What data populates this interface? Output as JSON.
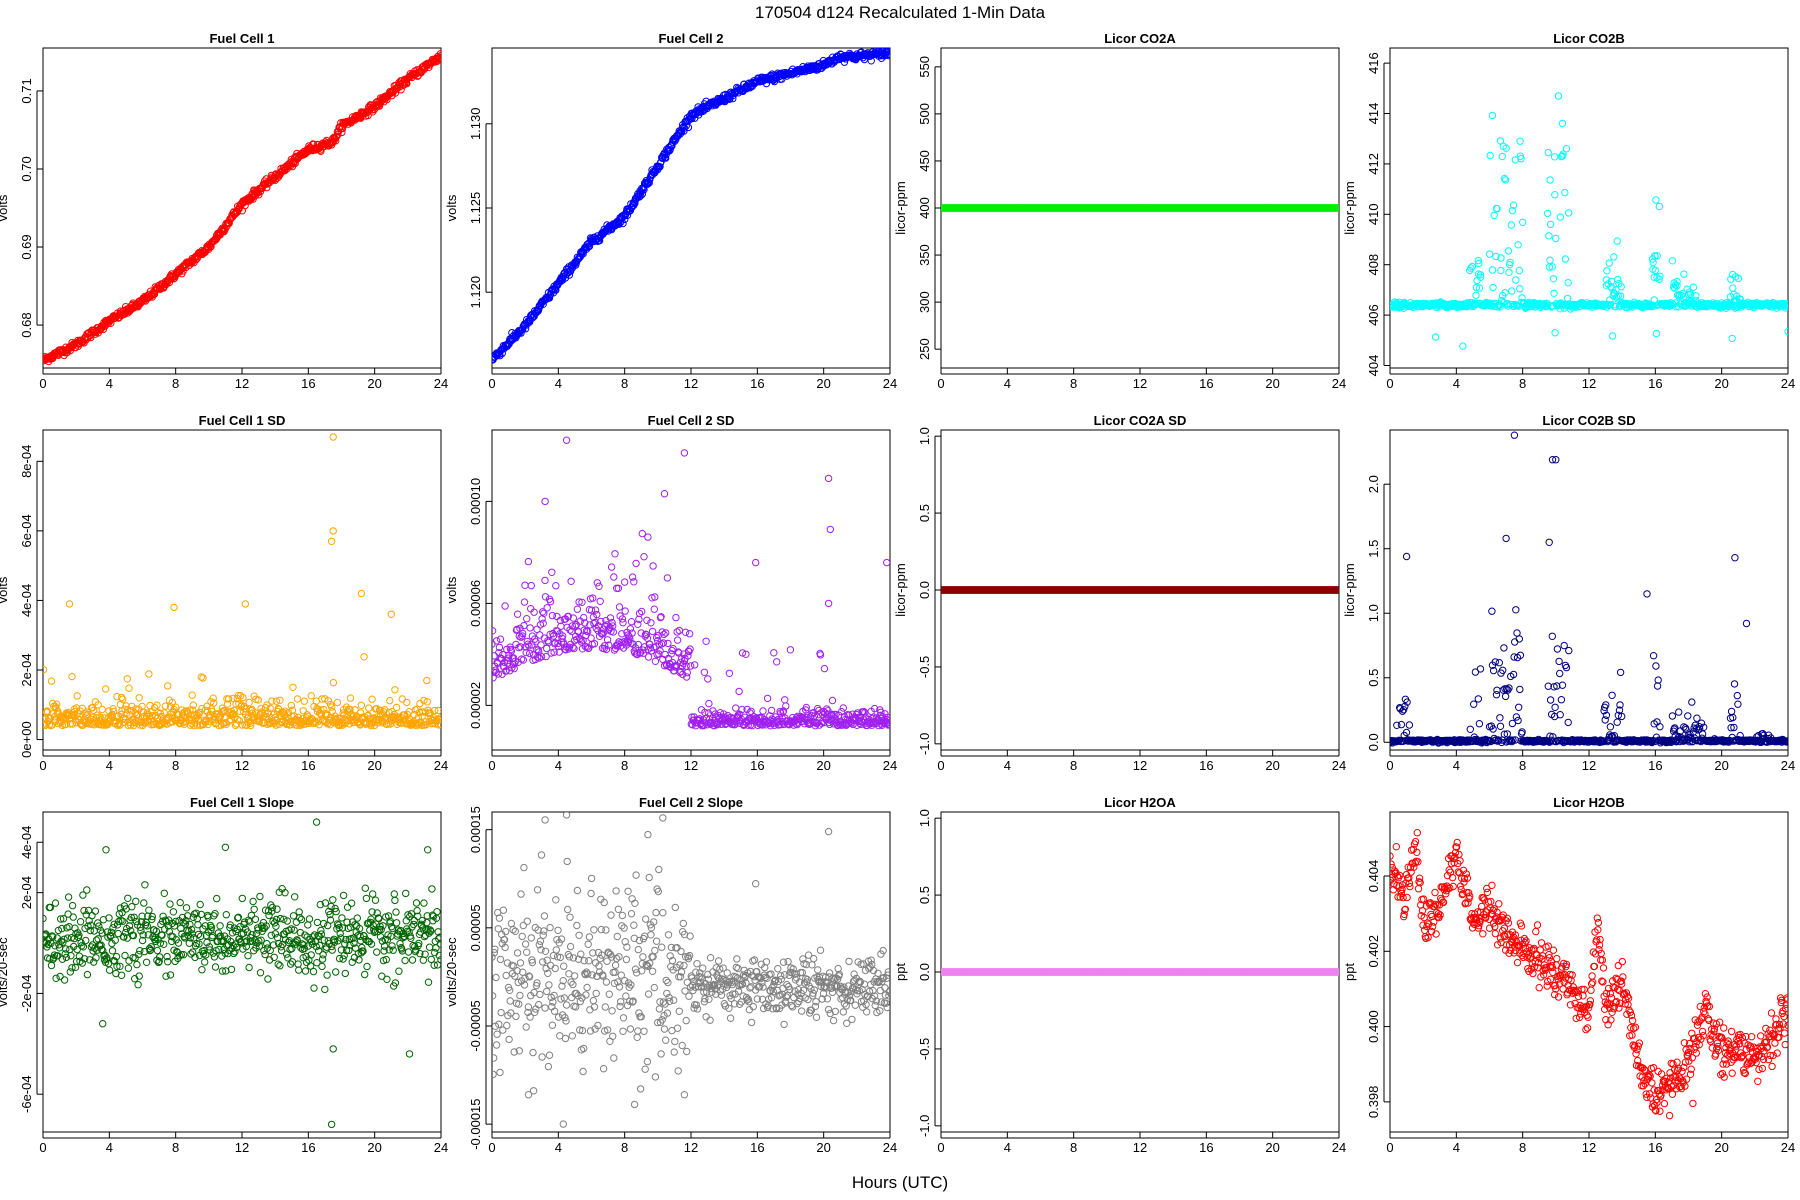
{
  "figure": {
    "title": "170504   d124   Recalculated 1-Min Data",
    "xlabel": "Hours (UTC)"
  },
  "chart_data": [
    {
      "type": "scatter",
      "id": "fc1",
      "title": "Fuel Cell 1",
      "ylabel": "volts",
      "color": "#ff0000",
      "xlim": [
        0,
        24
      ],
      "ylim": [
        0.6745,
        0.7155
      ],
      "xticks": [
        "0",
        "4",
        "8",
        "12",
        "16",
        "20",
        "24"
      ],
      "yticks": [
        {
          "v": 0.68,
          "label": "0.68"
        },
        {
          "v": 0.69,
          "label": "0.69"
        },
        {
          "v": 0.7,
          "label": "0.70"
        },
        {
          "v": 0.71,
          "label": "0.71"
        }
      ],
      "gen": {
        "kind": "trend",
        "x": [
          0,
          2,
          4,
          6,
          8,
          10,
          12,
          14,
          16,
          17.5,
          18,
          20,
          22,
          24
        ],
        "y": [
          0.6755,
          0.6775,
          0.6805,
          0.683,
          0.6865,
          0.69,
          0.6955,
          0.699,
          0.7025,
          0.7035,
          0.7055,
          0.708,
          0.7115,
          0.7145
        ],
        "noise": 0.00025
      }
    },
    {
      "type": "scatter",
      "id": "fc2",
      "title": "Fuel Cell 2",
      "ylabel": "volts",
      "color": "#0000ff",
      "xlim": [
        0,
        24
      ],
      "ylim": [
        1.1155,
        1.1345
      ],
      "xticks": [
        "0",
        "4",
        "8",
        "12",
        "16",
        "20",
        "24"
      ],
      "yticks": [
        {
          "v": 1.12,
          "label": "1.120"
        },
        {
          "v": 1.125,
          "label": "1.125"
        },
        {
          "v": 1.13,
          "label": "1.130"
        }
      ],
      "gen": {
        "kind": "trend",
        "x": [
          0,
          2,
          4,
          6,
          8,
          10,
          11,
          12,
          14,
          16,
          18,
          20,
          21,
          22,
          24
        ],
        "y": [
          1.116,
          1.118,
          1.1205,
          1.123,
          1.1245,
          1.1275,
          1.129,
          1.1305,
          1.1315,
          1.1325,
          1.133,
          1.1335,
          1.134,
          1.134,
          1.1342
        ],
        "noise": 0.00012
      }
    },
    {
      "type": "scatter",
      "id": "co2a",
      "title": "Licor CO2A",
      "ylabel": "licor-ppm",
      "color": "#00ee00",
      "xlim": [
        0,
        24
      ],
      "ylim": [
        230,
        570
      ],
      "xticks": [
        "0",
        "4",
        "8",
        "12",
        "16",
        "20",
        "24"
      ],
      "yticks": [
        {
          "v": 250,
          "label": "250"
        },
        {
          "v": 300,
          "label": "300"
        },
        {
          "v": 350,
          "label": "350"
        },
        {
          "v": 400,
          "label": "400"
        },
        {
          "v": 450,
          "label": "450"
        },
        {
          "v": 500,
          "label": "500"
        },
        {
          "v": 550,
          "label": "550"
        }
      ],
      "gen": {
        "kind": "flat",
        "value": 400
      }
    },
    {
      "type": "scatter",
      "id": "co2b",
      "title": "Licor CO2B",
      "ylabel": "licor-ppm",
      "color": "#00ffff",
      "xlim": [
        0,
        24
      ],
      "ylim": [
        403.9,
        416.6
      ],
      "xticks": [
        "0",
        "4",
        "8",
        "12",
        "16",
        "20",
        "24"
      ],
      "yticks": [
        {
          "v": 404,
          "label": "404"
        },
        {
          "v": 406,
          "label": "406"
        },
        {
          "v": 408,
          "label": "408"
        },
        {
          "v": 410,
          "label": "410"
        },
        {
          "v": 412,
          "label": "412"
        },
        {
          "v": 414,
          "label": "414"
        },
        {
          "v": 416,
          "label": "416"
        }
      ],
      "gen": {
        "kind": "spiky",
        "base": 406.4,
        "noise": 0.05,
        "bursts": [
          [
            4.8,
            5.5,
            2.5
          ],
          [
            6,
            8,
            8
          ],
          [
            9.5,
            10.8,
            8
          ],
          [
            13,
            14,
            1.5
          ],
          [
            15.8,
            16.3,
            4
          ],
          [
            17,
            18.5,
            1.2
          ],
          [
            20.5,
            21.2,
            1.5
          ]
        ],
        "low": 404.6
      }
    },
    {
      "type": "scatter",
      "id": "fc1sd",
      "title": "Fuel Cell 1 SD",
      "ylabel": "volts",
      "color": "#ffa500",
      "xlim": [
        0,
        24
      ],
      "ylim": [
        -3e-05,
        0.00089
      ],
      "xticks": [
        "0",
        "4",
        "8",
        "12",
        "16",
        "20",
        "24"
      ],
      "yticks": [
        {
          "v": 0,
          "label": "0e+00"
        },
        {
          "v": 0.0002,
          "label": "2e-04"
        },
        {
          "v": 0.0004,
          "label": "4e-04"
        },
        {
          "v": 0.0006,
          "label": "6e-04"
        },
        {
          "v": 0.0008,
          "label": "8e-04"
        }
      ],
      "gen": {
        "kind": "noisepos",
        "base": 4e-05,
        "spread": 4e-05,
        "outliers": [
          [
            17.5,
            0.00087
          ],
          [
            17.5,
            0.0006
          ],
          [
            17.4,
            0.00057
          ],
          [
            1.6,
            0.00039
          ],
          [
            12.2,
            0.00039
          ],
          [
            19.2,
            0.00042
          ],
          [
            21,
            0.00036
          ],
          [
            7.9,
            0.00038
          ]
        ]
      }
    },
    {
      "type": "scatter",
      "id": "fc2sd",
      "title": "Fuel Cell 2 SD",
      "ylabel": "volts",
      "color": "#a020f0",
      "xlim": [
        0,
        24
      ],
      "ylim": [
        2.5e-06,
        0.000128
      ],
      "xticks": [
        "0",
        "4",
        "8",
        "12",
        "16",
        "20",
        "24"
      ],
      "yticks": [
        {
          "v": 2e-05,
          "label": "0.00002"
        },
        {
          "v": 6e-05,
          "label": "0.00006"
        },
        {
          "v": 0.0001,
          "label": "0.00010"
        }
      ],
      "gen": {
        "kind": "sdwave",
        "outliers": [
          [
            4.5,
            0.000124
          ],
          [
            11.6,
            0.000119
          ],
          [
            10.4,
            0.000103
          ],
          [
            3.2,
            0.0001
          ],
          [
            20.3,
            0.000109
          ],
          [
            20.4,
            8.9e-05
          ],
          [
            9.4,
            8.6e-05
          ],
          [
            15.9,
            7.6e-05
          ],
          [
            23.8,
            7.6e-05
          ],
          [
            20.3,
            6e-05
          ]
        ]
      }
    },
    {
      "type": "scatter",
      "id": "co2asd",
      "title": "Licor CO2A SD",
      "ylabel": "licor-ppm",
      "color": "#8b0000",
      "xlim": [
        0,
        24
      ],
      "ylim": [
        -1.04,
        1.04
      ],
      "xticks": [
        "0",
        "4",
        "8",
        "12",
        "16",
        "20",
        "24"
      ],
      "yticks": [
        {
          "v": -1.0,
          "label": "-1.0"
        },
        {
          "v": -0.5,
          "label": "-0.5"
        },
        {
          "v": 0.0,
          "label": "0.0"
        },
        {
          "v": 0.5,
          "label": "0.5"
        },
        {
          "v": 1.0,
          "label": "1.0"
        }
      ],
      "gen": {
        "kind": "flat",
        "value": 0
      }
    },
    {
      "type": "scatter",
      "id": "co2bsd",
      "title": "Licor CO2B SD",
      "ylabel": "licor-ppm",
      "color": "#000080",
      "xlim": [
        0,
        24
      ],
      "ylim": [
        -0.06,
        2.42
      ],
      "xticks": [
        "0",
        "4",
        "8",
        "12",
        "16",
        "20",
        "24"
      ],
      "yticks": [
        {
          "v": 0.0,
          "label": "0.0"
        },
        {
          "v": 0.5,
          "label": "0.5"
        },
        {
          "v": 1.0,
          "label": "1.0"
        },
        {
          "v": 1.5,
          "label": "1.5"
        },
        {
          "v": 2.0,
          "label": "2.0"
        }
      ],
      "gen": {
        "kind": "spiky",
        "base": 0.01,
        "noise": 0.005,
        "bursts": [
          [
            0.4,
            1.2,
            0.4
          ],
          [
            4.8,
            5.5,
            0.6
          ],
          [
            6,
            8,
            1.0
          ],
          [
            9.5,
            10.8,
            1.1
          ],
          [
            12.8,
            14,
            0.5
          ],
          [
            15.8,
            16.3,
            0.7
          ],
          [
            17,
            19,
            0.25
          ],
          [
            20.5,
            21.2,
            0.5
          ],
          [
            22,
            23,
            0.1
          ]
        ],
        "outliers": [
          [
            7.5,
            2.38
          ],
          [
            9.8,
            2.19
          ],
          [
            10,
            2.19
          ],
          [
            1.0,
            1.44
          ],
          [
            20.8,
            1.43
          ],
          [
            7.0,
            1.58
          ],
          [
            9.6,
            1.55
          ],
          [
            15.5,
            1.15
          ],
          [
            21.5,
            0.92
          ]
        ]
      }
    },
    {
      "type": "scatter",
      "id": "fc1slope",
      "title": "Fuel Cell 1 Slope",
      "ylabel": "volts/20-sec",
      "color": "#006400",
      "xlim": [
        0,
        24
      ],
      "ylim": [
        -0.00075,
        0.00052
      ],
      "xticks": [
        "0",
        "4",
        "8",
        "12",
        "16",
        "20",
        "24"
      ],
      "yticks": [
        {
          "v": -0.0006,
          "label": "-6e-04"
        },
        {
          "v": -0.0002,
          "label": "-2e-04"
        },
        {
          "v": 0.0002,
          "label": "2e-04"
        },
        {
          "v": 0.0004,
          "label": "4e-04"
        }
      ],
      "gen": {
        "kind": "noisesym",
        "center": 2e-05,
        "spread": 7e-05,
        "outliers": [
          [
            16.5,
            0.00048
          ],
          [
            11,
            0.00038
          ],
          [
            3.8,
            0.00037
          ],
          [
            23.2,
            0.00037
          ],
          [
            17.4,
            -0.00072
          ],
          [
            17.5,
            -0.00042
          ],
          [
            22.1,
            -0.00044
          ],
          [
            3.6,
            -0.00032
          ]
        ]
      }
    },
    {
      "type": "scatter",
      "id": "fc2slope",
      "title": "Fuel Cell 2 Slope",
      "ylabel": "volts/20-sec",
      "color": "#808080",
      "xlim": [
        0,
        24
      ],
      "ylim": [
        -0.000158,
        0.000168
      ],
      "xticks": [
        "0",
        "4",
        "8",
        "12",
        "16",
        "20",
        "24"
      ],
      "yticks": [
        {
          "v": -0.00015,
          "label": "-0.00015"
        },
        {
          "v": -5e-05,
          "label": "-0.00005"
        },
        {
          "v": 5e-05,
          "label": "0.00005"
        },
        {
          "v": 0.00015,
          "label": "0.00015"
        }
      ],
      "gen": {
        "kind": "slopewave",
        "outliers": [
          [
            4.5,
            0.000165
          ],
          [
            10.3,
            0.000162
          ],
          [
            3.2,
            0.00016
          ],
          [
            20.3,
            0.000148
          ],
          [
            9.4,
            0.000145
          ],
          [
            15.9,
            9.5e-05
          ],
          [
            4.3,
            -0.00015
          ],
          [
            8.6,
            -0.00013
          ],
          [
            11.6,
            -0.00012
          ],
          [
            2.2,
            -0.00012
          ]
        ]
      }
    },
    {
      "type": "scatter",
      "id": "h2oa",
      "title": "Licor H2OA",
      "ylabel": "ppt",
      "color": "#ee82ee",
      "xlim": [
        0,
        24
      ],
      "ylim": [
        -1.04,
        1.04
      ],
      "xticks": [
        "0",
        "4",
        "8",
        "12",
        "16",
        "20",
        "24"
      ],
      "yticks": [
        {
          "v": -1.0,
          "label": "-1.0"
        },
        {
          "v": -0.5,
          "label": "-0.5"
        },
        {
          "v": 0.0,
          "label": "0.0"
        },
        {
          "v": 0.5,
          "label": "0.5"
        },
        {
          "v": 1.0,
          "label": "1.0"
        }
      ],
      "gen": {
        "kind": "flat",
        "value": 0
      }
    },
    {
      "type": "scatter",
      "id": "h2ob",
      "title": "Licor H2OB",
      "ylabel": "ppt",
      "color": "#ff0000",
      "xlim": [
        0,
        24
      ],
      "ylim": [
        0.3972,
        0.4057
      ],
      "xticks": [
        "0",
        "4",
        "8",
        "12",
        "16",
        "20",
        "24"
      ],
      "yticks": [
        {
          "v": 0.398,
          "label": "0.398"
        },
        {
          "v": 0.4,
          "label": "0.400"
        },
        {
          "v": 0.402,
          "label": "0.402"
        },
        {
          "v": 0.404,
          "label": "0.404"
        }
      ],
      "gen": {
        "kind": "trend",
        "x": [
          0,
          1,
          1.5,
          2,
          3,
          4,
          5,
          6,
          7,
          8,
          9,
          10,
          11,
          12,
          12.5,
          13,
          14,
          15,
          16,
          17,
          18,
          19,
          20,
          21,
          22,
          23,
          24
        ],
        "y": [
          0.4042,
          0.4035,
          0.405,
          0.4028,
          0.4032,
          0.4045,
          0.4028,
          0.4032,
          0.4024,
          0.402,
          0.4018,
          0.4014,
          0.401,
          0.4004,
          0.4028,
          0.4005,
          0.4012,
          0.399,
          0.398,
          0.3985,
          0.399,
          0.4005,
          0.3992,
          0.3996,
          0.399,
          0.3998,
          0.4002
        ],
        "noise": 0.0003
      }
    }
  ]
}
